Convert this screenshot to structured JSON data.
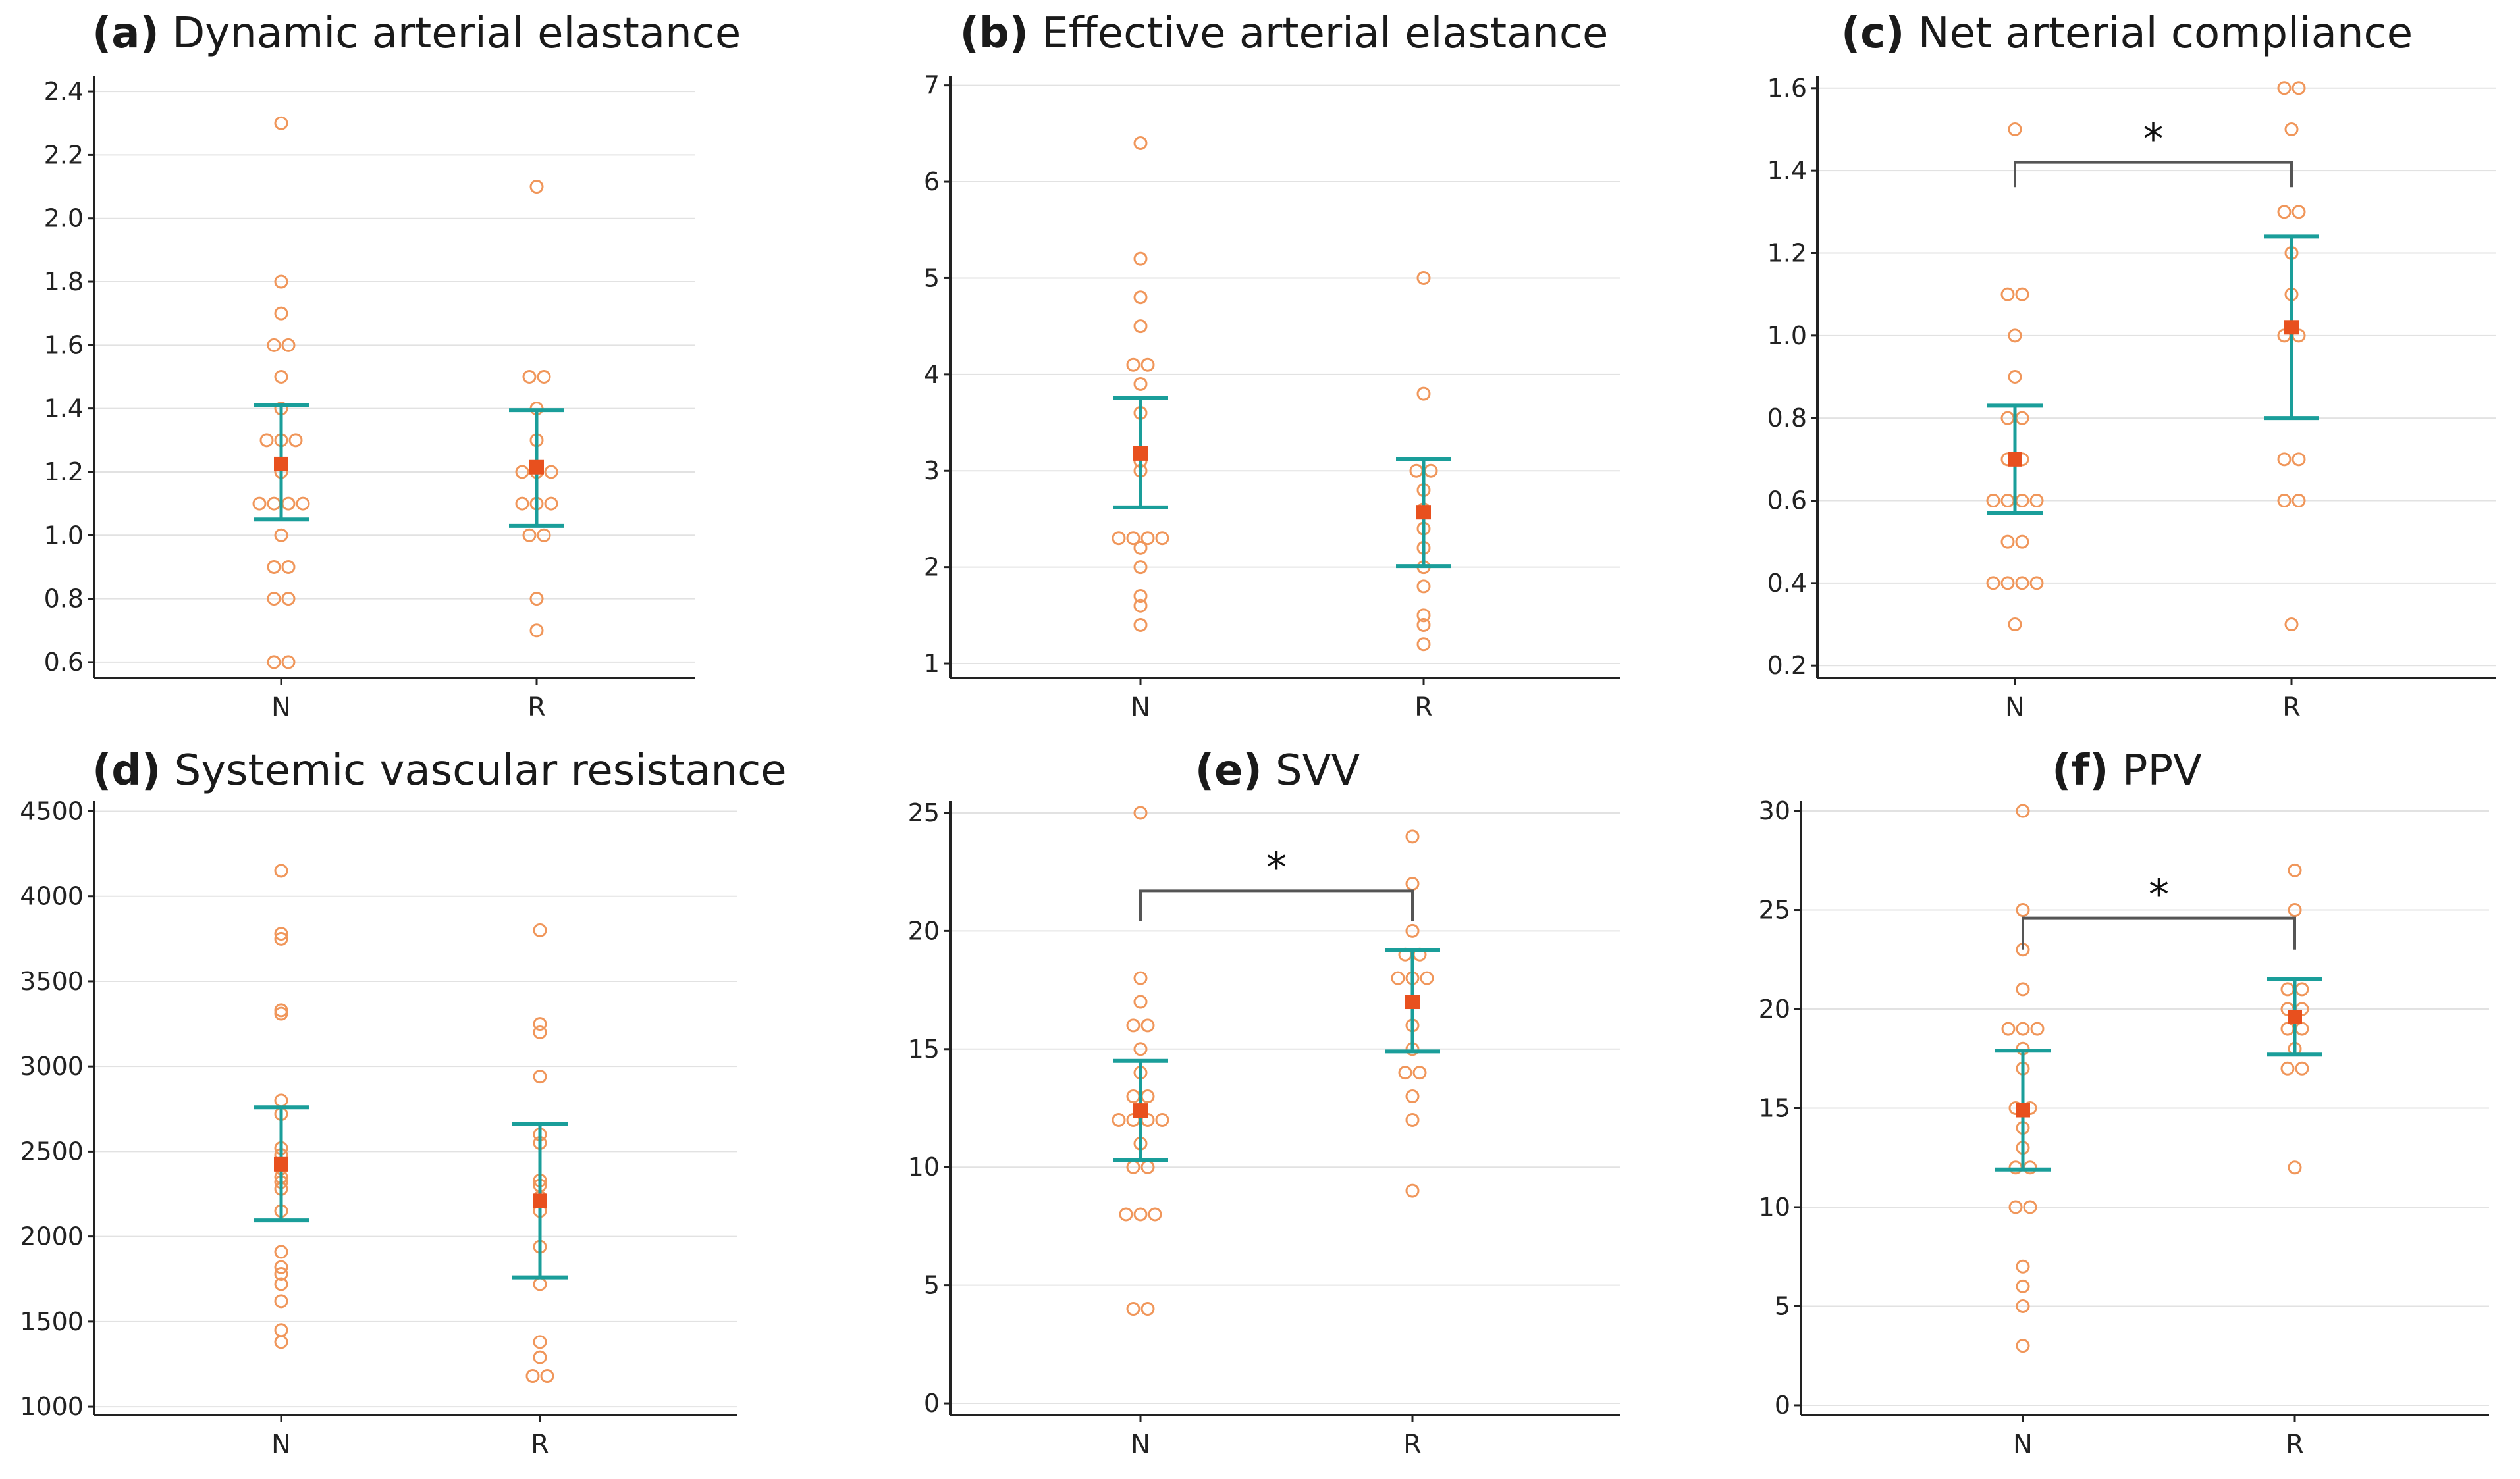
{
  "chart_data": [
    {
      "type": "scatter",
      "panel_label": "(a)",
      "title": "Dynamic arterial elastance",
      "xlabel": "",
      "ylabel": "",
      "categories": [
        "N",
        "R"
      ],
      "ylim": [
        0.55,
        2.45
      ],
      "yticks": [
        0.6,
        0.8,
        1.0,
        1.2,
        1.4,
        1.6,
        1.8,
        2.0,
        2.2,
        2.4
      ],
      "ytick_labels": [
        "0.6",
        "0.8",
        "1.0",
        "1.2",
        "1.4",
        "1.6",
        "1.8",
        "2.0",
        "2.2",
        "2.4"
      ],
      "grid": true,
      "series": [
        {
          "name": "N",
          "points": [
            2.3,
            1.8,
            1.7,
            1.6,
            1.6,
            1.5,
            1.4,
            1.3,
            1.3,
            1.3,
            1.2,
            1.1,
            1.1,
            1.1,
            1.1,
            1.0,
            0.9,
            0.9,
            0.8,
            0.8,
            0.6,
            0.6
          ],
          "mean": 1.225,
          "ci": [
            1.05,
            1.41
          ]
        },
        {
          "name": "R",
          "points": [
            2.1,
            1.5,
            1.5,
            1.4,
            1.3,
            1.2,
            1.2,
            1.2,
            1.1,
            1.1,
            1.1,
            1.0,
            1.0,
            0.8,
            0.7
          ],
          "mean": 1.215,
          "ci": [
            1.03,
            1.395
          ]
        }
      ],
      "significance": null
    },
    {
      "type": "scatter",
      "panel_label": "(b)",
      "title": "Effective arterial elastance",
      "xlabel": "",
      "ylabel": "",
      "categories": [
        "N",
        "R"
      ],
      "ylim": [
        0.85,
        7.1
      ],
      "yticks": [
        1,
        2,
        3,
        4,
        5,
        6,
        7
      ],
      "ytick_labels": [
        "1",
        "2",
        "3",
        "4",
        "5",
        "6",
        "7"
      ],
      "grid": true,
      "series": [
        {
          "name": "N",
          "points": [
            6.4,
            5.2,
            4.8,
            4.5,
            4.1,
            4.1,
            3.9,
            3.6,
            3.1,
            3.0,
            2.3,
            2.3,
            2.3,
            2.3,
            2.2,
            2.0,
            1.7,
            1.6,
            1.4
          ],
          "mean": 3.18,
          "ci": [
            2.62,
            3.76
          ]
        },
        {
          "name": "R",
          "points": [
            5.0,
            3.8,
            3.0,
            3.0,
            2.8,
            2.6,
            2.4,
            2.2,
            2.0,
            1.8,
            1.5,
            1.4,
            1.2
          ],
          "mean": 2.57,
          "ci": [
            2.01,
            3.12
          ]
        }
      ],
      "significance": null
    },
    {
      "type": "scatter",
      "panel_label": "(c)",
      "title": "Net arterial compliance",
      "xlabel": "",
      "ylabel": "",
      "categories": [
        "N",
        "R"
      ],
      "ylim": [
        0.17,
        1.63
      ],
      "yticks": [
        0.2,
        0.4,
        0.6,
        0.8,
        1.0,
        1.2,
        1.4,
        1.6
      ],
      "ytick_labels": [
        "0.2",
        "0.4",
        "0.6",
        "0.8",
        "1.0",
        "1.2",
        "1.4",
        "1.6"
      ],
      "grid": true,
      "series": [
        {
          "name": "N",
          "points": [
            1.5,
            1.1,
            1.1,
            1.0,
            0.9,
            0.8,
            0.8,
            0.7,
            0.7,
            0.6,
            0.6,
            0.6,
            0.6,
            0.5,
            0.5,
            0.4,
            0.4,
            0.4,
            0.4,
            0.3
          ],
          "mean": 0.7,
          "ci": [
            0.57,
            0.83
          ]
        },
        {
          "name": "R",
          "points": [
            1.6,
            1.6,
            1.5,
            1.3,
            1.3,
            1.2,
            1.1,
            1.0,
            1.0,
            0.7,
            0.7,
            0.6,
            0.6,
            0.3
          ],
          "mean": 1.02,
          "ci": [
            0.8,
            1.24
          ]
        }
      ],
      "significance": {
        "label": "*",
        "y": 1.42,
        "drop": 1.36
      }
    },
    {
      "type": "scatter",
      "panel_label": "(d)",
      "title": "Systemic vascular resistance",
      "xlabel": "",
      "ylabel": "",
      "categories": [
        "N",
        "R"
      ],
      "ylim": [
        950,
        4560
      ],
      "yticks": [
        1000,
        1500,
        2000,
        2500,
        3000,
        3500,
        4000,
        4500
      ],
      "ytick_labels": [
        "1000",
        "1500",
        "2000",
        "2500",
        "3000",
        "3500",
        "4000",
        "4500"
      ],
      "grid": true,
      "series": [
        {
          "name": "N",
          "points": [
            4150,
            3780,
            3750,
            3330,
            3310,
            2800,
            2720,
            2520,
            2480,
            2400,
            2350,
            2320,
            2280,
            2150,
            1910,
            1820,
            1780,
            1720,
            1620,
            1450,
            1380
          ],
          "mean": 2425,
          "ci": [
            2095,
            2760
          ]
        },
        {
          "name": "R",
          "points": [
            3800,
            3250,
            3200,
            2940,
            2600,
            2550,
            2330,
            2300,
            2230,
            2150,
            1940,
            1720,
            1380,
            1290,
            1180,
            1180
          ],
          "mean": 2210,
          "ci": [
            1760,
            2660
          ]
        }
      ],
      "significance": null
    },
    {
      "type": "scatter",
      "panel_label": "(e)",
      "title": "SVV",
      "xlabel": "",
      "ylabel": "",
      "categories": [
        "N",
        "R"
      ],
      "ylim": [
        -0.5,
        25.5
      ],
      "yticks": [
        0,
        5,
        10,
        15,
        20,
        25
      ],
      "ytick_labels": [
        "0",
        "5",
        "10",
        "15",
        "20",
        "25"
      ],
      "grid": true,
      "series": [
        {
          "name": "N",
          "points": [
            25,
            18,
            17,
            16,
            16,
            15,
            14,
            13,
            13,
            12,
            12,
            12,
            12,
            11,
            10,
            10,
            8,
            8,
            8,
            4,
            4
          ],
          "mean": 12.4,
          "ci": [
            10.3,
            14.5
          ]
        },
        {
          "name": "R",
          "points": [
            24,
            22,
            20,
            19,
            19,
            18,
            18,
            18,
            17,
            16,
            15,
            14,
            14,
            13,
            12,
            9
          ],
          "mean": 17.0,
          "ci": [
            14.9,
            19.2
          ]
        }
      ],
      "significance": {
        "label": "*",
        "y": 21.7,
        "drop": 20.4
      }
    },
    {
      "type": "scatter",
      "panel_label": "(f)",
      "title": "PPV",
      "xlabel": "",
      "ylabel": "",
      "categories": [
        "N",
        "R"
      ],
      "ylim": [
        -0.5,
        30.5
      ],
      "yticks": [
        0,
        5,
        10,
        15,
        20,
        25,
        30
      ],
      "ytick_labels": [
        "0",
        "5",
        "10",
        "15",
        "20",
        "25",
        "30"
      ],
      "grid": true,
      "series": [
        {
          "name": "N",
          "points": [
            30,
            25,
            23,
            21,
            19,
            19,
            19,
            18,
            17,
            15,
            15,
            14,
            13,
            12,
            12,
            10,
            10,
            7,
            6,
            5,
            3
          ],
          "mean": 14.9,
          "ci": [
            11.9,
            17.9
          ]
        },
        {
          "name": "R",
          "points": [
            27,
            25,
            21,
            21,
            20,
            20,
            19,
            19,
            18,
            17,
            17,
            12
          ],
          "mean": 19.6,
          "ci": [
            17.7,
            21.5
          ]
        }
      ],
      "significance": {
        "label": "*",
        "y": 24.6,
        "drop": 23.0
      }
    }
  ]
}
